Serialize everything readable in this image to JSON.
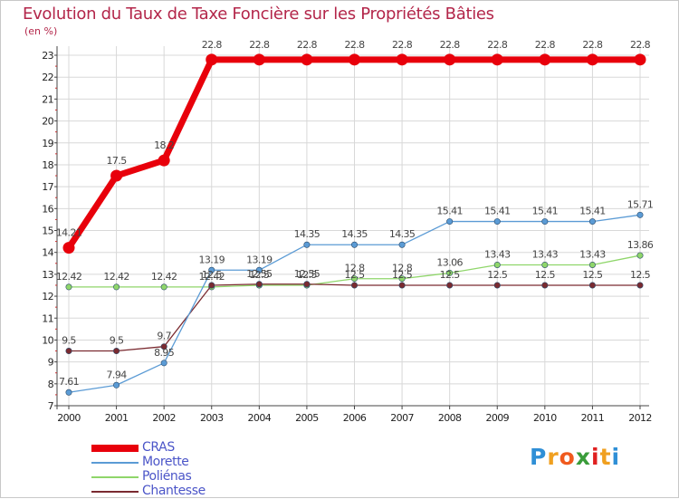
{
  "chart_data": {
    "type": "line",
    "title": "Evolution du Taux de Taxe Foncière sur les Propriétés Bâties",
    "unit_label": "(en %)",
    "x": [
      "2000",
      "2001",
      "2002",
      "2003",
      "2004",
      "2005",
      "2006",
      "2007",
      "2008",
      "2009",
      "2010",
      "2011",
      "2012"
    ],
    "ylim": [
      7,
      23
    ],
    "yticks": [
      7,
      8,
      9,
      10,
      11,
      12,
      13,
      14,
      15,
      16,
      17,
      18,
      19,
      20,
      21,
      22,
      23
    ],
    "series": [
      {
        "name": "CRAS",
        "color": "#e8000b",
        "values": [
          14.21,
          17.5,
          18.2,
          22.8,
          22.8,
          22.8,
          22.8,
          22.8,
          22.8,
          22.8,
          22.8,
          22.8,
          22.8
        ],
        "labels": [
          "14.21",
          "17.5",
          "18.2",
          "22.8",
          "22.8",
          "22.8",
          "22.8",
          "22.8",
          "22.8",
          "22.8",
          "22.8",
          "22.8",
          "22.8"
        ]
      },
      {
        "name": "Morette",
        "color": "#5b9bd5",
        "values": [
          7.61,
          7.94,
          8.95,
          13.19,
          13.19,
          14.35,
          14.35,
          14.35,
          15.41,
          15.41,
          15.41,
          15.41,
          15.71
        ],
        "labels": [
          "7.61",
          "7.94",
          "8.95",
          "13.19",
          "13.19",
          "14.35",
          "14.35",
          "14.35",
          "15.41",
          "15.41",
          "15.41",
          "15.41",
          "15.71"
        ]
      },
      {
        "name": "Poliénas",
        "color": "#8fd66a",
        "values": [
          12.42,
          12.42,
          12.42,
          12.42,
          12.5,
          12.5,
          12.8,
          12.8,
          13.06,
          13.43,
          13.43,
          13.43,
          13.86
        ],
        "labels": [
          "12.42",
          "12.42",
          "12.42",
          "12.42",
          "12.5",
          "12.5",
          "12.8",
          "12.8",
          "13.06",
          "13.43",
          "13.43",
          "13.43",
          "13.86"
        ]
      },
      {
        "name": "Chantesse",
        "color": "#7a2a30",
        "values": [
          9.5,
          9.5,
          9.7,
          12.5,
          12.55,
          12.55,
          12.5,
          12.5,
          12.5,
          12.5,
          12.5,
          12.5,
          12.5
        ],
        "labels": [
          "9.5",
          "9.5",
          "9.7",
          "12.5",
          "12.55",
          "12.55",
          "12.5",
          "12.5",
          "12.5",
          "12.5",
          "12.5",
          "12.5",
          "12.5"
        ]
      }
    ],
    "legend": [
      "CRAS",
      "Morette",
      "Poliénas",
      "Chantesse"
    ]
  },
  "logo": {
    "letters": [
      "P",
      "r",
      "o",
      "x",
      "i",
      "t",
      "i"
    ],
    "colors": [
      "#2f8fd6",
      "#f0a020",
      "#f05a1e",
      "#3a9c3a",
      "#e02020",
      "#f0a020",
      "#2f8fd6"
    ]
  }
}
